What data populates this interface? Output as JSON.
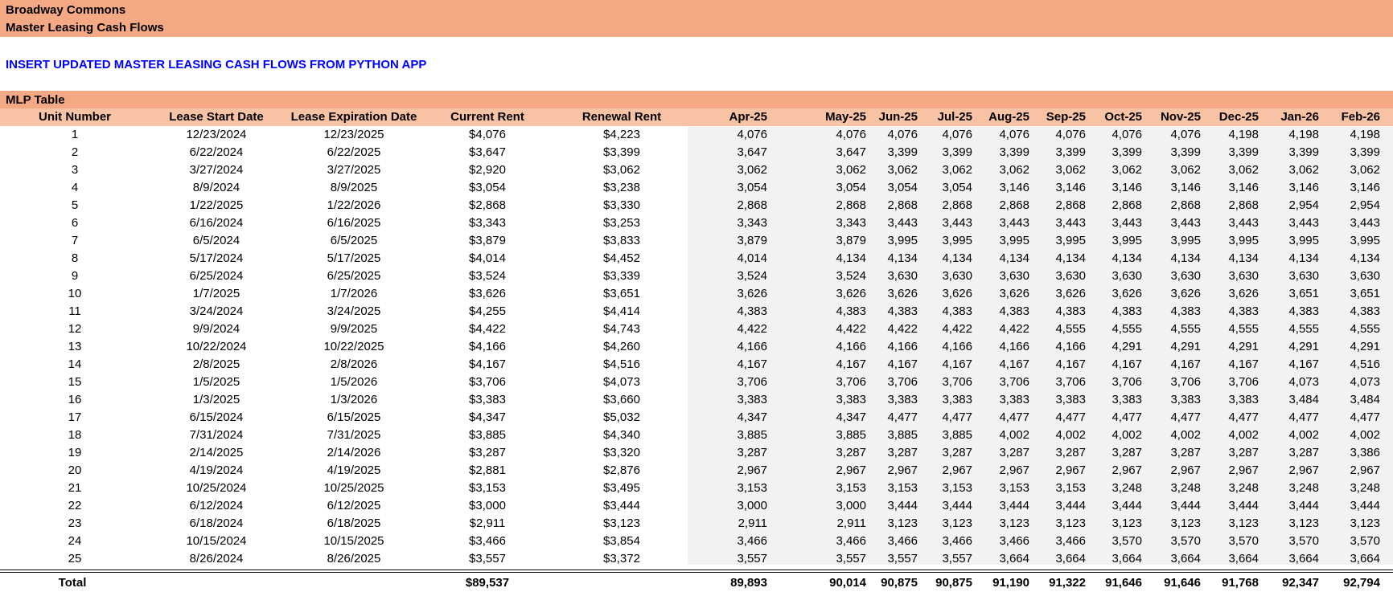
{
  "header": {
    "property_name": "Broadway Commons",
    "report_title": "Master Leasing Cash Flows"
  },
  "note": "INSERT UPDATED MASTER LEASING CASH FLOWS FROM PYTHON APP",
  "table": {
    "title": "MLP Table",
    "columns": [
      "Unit Number",
      "Lease Start Date",
      "Lease Expiration Date",
      "Current Rent",
      "Renewal Rent"
    ],
    "months": [
      "Apr-25",
      "May-25",
      "Jun-25",
      "Jul-25",
      "Aug-25",
      "Sep-25",
      "Oct-25",
      "Nov-25",
      "Dec-25",
      "Jan-26",
      "Feb-26"
    ],
    "rows": [
      {
        "unit": "1",
        "start": "12/23/2024",
        "exp": "12/23/2025",
        "current": "$4,076",
        "renewal": "$4,223",
        "m": [
          "4,076",
          "4,076",
          "4,076",
          "4,076",
          "4,076",
          "4,076",
          "4,076",
          "4,076",
          "4,198",
          "4,198",
          "4,198"
        ]
      },
      {
        "unit": "2",
        "start": "6/22/2024",
        "exp": "6/22/2025",
        "current": "$3,647",
        "renewal": "$3,399",
        "m": [
          "3,647",
          "3,647",
          "3,399",
          "3,399",
          "3,399",
          "3,399",
          "3,399",
          "3,399",
          "3,399",
          "3,399",
          "3,399"
        ]
      },
      {
        "unit": "3",
        "start": "3/27/2024",
        "exp": "3/27/2025",
        "current": "$2,920",
        "renewal": "$3,062",
        "m": [
          "3,062",
          "3,062",
          "3,062",
          "3,062",
          "3,062",
          "3,062",
          "3,062",
          "3,062",
          "3,062",
          "3,062",
          "3,062"
        ]
      },
      {
        "unit": "4",
        "start": "8/9/2024",
        "exp": "8/9/2025",
        "current": "$3,054",
        "renewal": "$3,238",
        "m": [
          "3,054",
          "3,054",
          "3,054",
          "3,054",
          "3,146",
          "3,146",
          "3,146",
          "3,146",
          "3,146",
          "3,146",
          "3,146"
        ]
      },
      {
        "unit": "5",
        "start": "1/22/2025",
        "exp": "1/22/2026",
        "current": "$2,868",
        "renewal": "$3,330",
        "m": [
          "2,868",
          "2,868",
          "2,868",
          "2,868",
          "2,868",
          "2,868",
          "2,868",
          "2,868",
          "2,868",
          "2,954",
          "2,954"
        ]
      },
      {
        "unit": "6",
        "start": "6/16/2024",
        "exp": "6/16/2025",
        "current": "$3,343",
        "renewal": "$3,253",
        "m": [
          "3,343",
          "3,343",
          "3,443",
          "3,443",
          "3,443",
          "3,443",
          "3,443",
          "3,443",
          "3,443",
          "3,443",
          "3,443"
        ]
      },
      {
        "unit": "7",
        "start": "6/5/2024",
        "exp": "6/5/2025",
        "current": "$3,879",
        "renewal": "$3,833",
        "m": [
          "3,879",
          "3,879",
          "3,995",
          "3,995",
          "3,995",
          "3,995",
          "3,995",
          "3,995",
          "3,995",
          "3,995",
          "3,995"
        ]
      },
      {
        "unit": "8",
        "start": "5/17/2024",
        "exp": "5/17/2025",
        "current": "$4,014",
        "renewal": "$4,452",
        "m": [
          "4,014",
          "4,134",
          "4,134",
          "4,134",
          "4,134",
          "4,134",
          "4,134",
          "4,134",
          "4,134",
          "4,134",
          "4,134"
        ]
      },
      {
        "unit": "9",
        "start": "6/25/2024",
        "exp": "6/25/2025",
        "current": "$3,524",
        "renewal": "$3,339",
        "m": [
          "3,524",
          "3,524",
          "3,630",
          "3,630",
          "3,630",
          "3,630",
          "3,630",
          "3,630",
          "3,630",
          "3,630",
          "3,630"
        ]
      },
      {
        "unit": "10",
        "start": "1/7/2025",
        "exp": "1/7/2026",
        "current": "$3,626",
        "renewal": "$3,651",
        "m": [
          "3,626",
          "3,626",
          "3,626",
          "3,626",
          "3,626",
          "3,626",
          "3,626",
          "3,626",
          "3,626",
          "3,651",
          "3,651"
        ]
      },
      {
        "unit": "11",
        "start": "3/24/2024",
        "exp": "3/24/2025",
        "current": "$4,255",
        "renewal": "$4,414",
        "m": [
          "4,383",
          "4,383",
          "4,383",
          "4,383",
          "4,383",
          "4,383",
          "4,383",
          "4,383",
          "4,383",
          "4,383",
          "4,383"
        ]
      },
      {
        "unit": "12",
        "start": "9/9/2024",
        "exp": "9/9/2025",
        "current": "$4,422",
        "renewal": "$4,743",
        "m": [
          "4,422",
          "4,422",
          "4,422",
          "4,422",
          "4,422",
          "4,555",
          "4,555",
          "4,555",
          "4,555",
          "4,555",
          "4,555"
        ]
      },
      {
        "unit": "13",
        "start": "10/22/2024",
        "exp": "10/22/2025",
        "current": "$4,166",
        "renewal": "$4,260",
        "m": [
          "4,166",
          "4,166",
          "4,166",
          "4,166",
          "4,166",
          "4,166",
          "4,291",
          "4,291",
          "4,291",
          "4,291",
          "4,291"
        ]
      },
      {
        "unit": "14",
        "start": "2/8/2025",
        "exp": "2/8/2026",
        "current": "$4,167",
        "renewal": "$4,516",
        "m": [
          "4,167",
          "4,167",
          "4,167",
          "4,167",
          "4,167",
          "4,167",
          "4,167",
          "4,167",
          "4,167",
          "4,167",
          "4,516"
        ]
      },
      {
        "unit": "15",
        "start": "1/5/2025",
        "exp": "1/5/2026",
        "current": "$3,706",
        "renewal": "$4,073",
        "m": [
          "3,706",
          "3,706",
          "3,706",
          "3,706",
          "3,706",
          "3,706",
          "3,706",
          "3,706",
          "3,706",
          "4,073",
          "4,073"
        ]
      },
      {
        "unit": "16",
        "start": "1/3/2025",
        "exp": "1/3/2026",
        "current": "$3,383",
        "renewal": "$3,660",
        "m": [
          "3,383",
          "3,383",
          "3,383",
          "3,383",
          "3,383",
          "3,383",
          "3,383",
          "3,383",
          "3,383",
          "3,484",
          "3,484"
        ]
      },
      {
        "unit": "17",
        "start": "6/15/2024",
        "exp": "6/15/2025",
        "current": "$4,347",
        "renewal": "$5,032",
        "m": [
          "4,347",
          "4,347",
          "4,477",
          "4,477",
          "4,477",
          "4,477",
          "4,477",
          "4,477",
          "4,477",
          "4,477",
          "4,477"
        ]
      },
      {
        "unit": "18",
        "start": "7/31/2024",
        "exp": "7/31/2025",
        "current": "$3,885",
        "renewal": "$4,340",
        "m": [
          "3,885",
          "3,885",
          "3,885",
          "3,885",
          "4,002",
          "4,002",
          "4,002",
          "4,002",
          "4,002",
          "4,002",
          "4,002"
        ]
      },
      {
        "unit": "19",
        "start": "2/14/2025",
        "exp": "2/14/2026",
        "current": "$3,287",
        "renewal": "$3,320",
        "m": [
          "3,287",
          "3,287",
          "3,287",
          "3,287",
          "3,287",
          "3,287",
          "3,287",
          "3,287",
          "3,287",
          "3,287",
          "3,386"
        ]
      },
      {
        "unit": "20",
        "start": "4/19/2024",
        "exp": "4/19/2025",
        "current": "$2,881",
        "renewal": "$2,876",
        "m": [
          "2,967",
          "2,967",
          "2,967",
          "2,967",
          "2,967",
          "2,967",
          "2,967",
          "2,967",
          "2,967",
          "2,967",
          "2,967"
        ]
      },
      {
        "unit": "21",
        "start": "10/25/2024",
        "exp": "10/25/2025",
        "current": "$3,153",
        "renewal": "$3,495",
        "m": [
          "3,153",
          "3,153",
          "3,153",
          "3,153",
          "3,153",
          "3,153",
          "3,248",
          "3,248",
          "3,248",
          "3,248",
          "3,248"
        ]
      },
      {
        "unit": "22",
        "start": "6/12/2024",
        "exp": "6/12/2025",
        "current": "$3,000",
        "renewal": "$3,444",
        "m": [
          "3,000",
          "3,000",
          "3,444",
          "3,444",
          "3,444",
          "3,444",
          "3,444",
          "3,444",
          "3,444",
          "3,444",
          "3,444"
        ]
      },
      {
        "unit": "23",
        "start": "6/18/2024",
        "exp": "6/18/2025",
        "current": "$2,911",
        "renewal": "$3,123",
        "m": [
          "2,911",
          "2,911",
          "3,123",
          "3,123",
          "3,123",
          "3,123",
          "3,123",
          "3,123",
          "3,123",
          "3,123",
          "3,123"
        ]
      },
      {
        "unit": "24",
        "start": "10/15/2024",
        "exp": "10/15/2025",
        "current": "$3,466",
        "renewal": "$3,854",
        "m": [
          "3,466",
          "3,466",
          "3,466",
          "3,466",
          "3,466",
          "3,466",
          "3,570",
          "3,570",
          "3,570",
          "3,570",
          "3,570"
        ]
      },
      {
        "unit": "25",
        "start": "8/26/2024",
        "exp": "8/26/2025",
        "current": "$3,557",
        "renewal": "$3,372",
        "m": [
          "3,557",
          "3,557",
          "3,557",
          "3,557",
          "3,664",
          "3,664",
          "3,664",
          "3,664",
          "3,664",
          "3,664",
          "3,664"
        ]
      }
    ],
    "total": {
      "label": "Total",
      "current": "$89,537",
      "m": [
        "89,893",
        "90,014",
        "90,875",
        "90,875",
        "91,190",
        "91,322",
        "91,646",
        "91,646",
        "91,768",
        "92,347",
        "92,794"
      ]
    }
  },
  "colors": {
    "banner": "#F4A984",
    "header_row": "#F8C2A5",
    "note": "#0000FF",
    "month_band": "#F2F2F2"
  }
}
